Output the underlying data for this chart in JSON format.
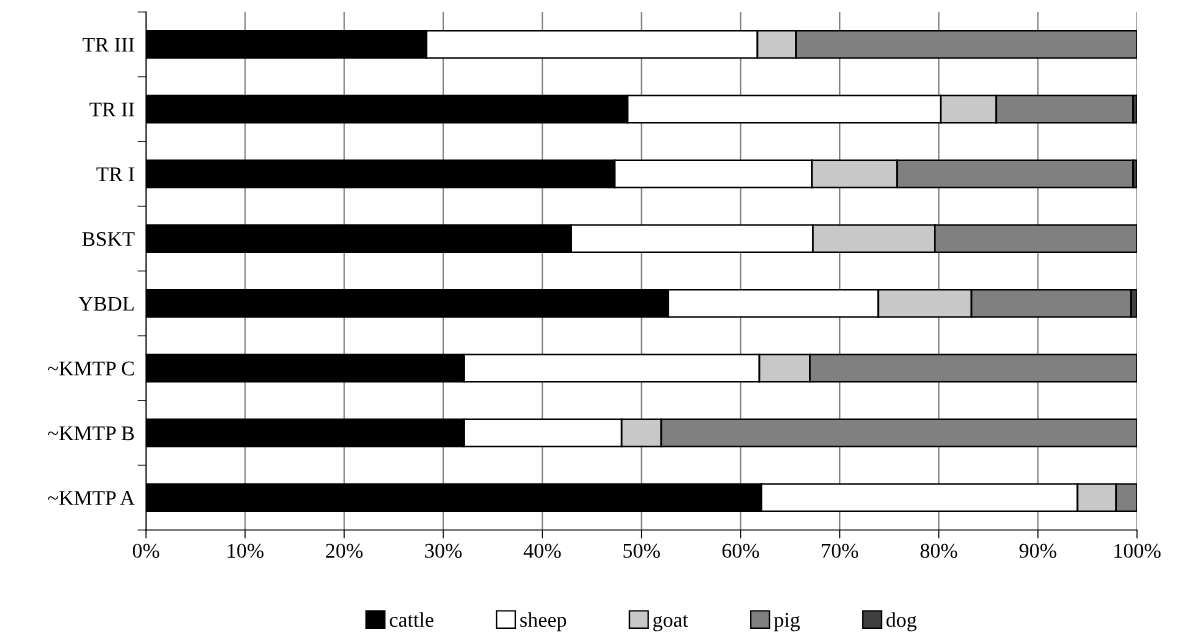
{
  "chart_data": {
    "type": "bar",
    "orientation": "horizontal",
    "stacked": true,
    "categories": [
      "TR III",
      "TR II",
      "TR I",
      "BSKT",
      "YBDL",
      "~KMTP C",
      "~KMTP B",
      "~KMTP A"
    ],
    "series": [
      {
        "name": "cattle",
        "color": "#000000",
        "values": [
          28.3,
          48.6,
          47.3,
          42.9,
          52.7,
          32.1,
          32.1,
          62.1
        ]
      },
      {
        "name": "sheep",
        "color": "#ffffff",
        "values": [
          33.4,
          31.6,
          19.9,
          24.4,
          21.2,
          29.8,
          15.9,
          31.9
        ]
      },
      {
        "name": "goat",
        "color": "#c8c8c8",
        "values": [
          3.9,
          5.6,
          8.6,
          12.3,
          9.4,
          5.1,
          4.0,
          3.9
        ]
      },
      {
        "name": "pig",
        "color": "#808080",
        "values": [
          34.4,
          13.8,
          23.8,
          20.4,
          16.1,
          33.0,
          48.0,
          2.1
        ]
      },
      {
        "name": "dog",
        "color": "#404040",
        "values": [
          null,
          0.4,
          0.4,
          null,
          0.6,
          null,
          null,
          null
        ]
      }
    ],
    "xlim": [
      0,
      100
    ],
    "xticks": [
      {
        "value": 0,
        "label": "0%"
      },
      {
        "value": 10,
        "label": "10%"
      },
      {
        "value": 20,
        "label": "20%"
      },
      {
        "value": 30,
        "label": "30%"
      },
      {
        "value": 40,
        "label": "40%"
      },
      {
        "value": 50,
        "label": "50%"
      },
      {
        "value": 60,
        "label": "60%"
      },
      {
        "value": 70,
        "label": "70%"
      },
      {
        "value": 80,
        "label": "80%"
      },
      {
        "value": 90,
        "label": "90%"
      },
      {
        "value": 100,
        "label": "100%"
      }
    ],
    "grid": "x",
    "legend": "bottom"
  }
}
